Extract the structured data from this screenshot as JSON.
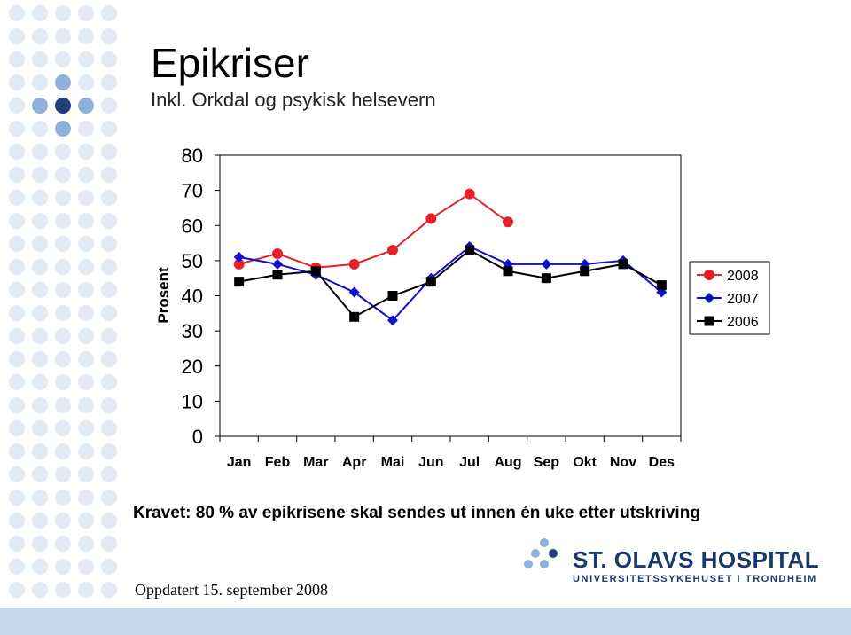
{
  "slide": {
    "title": "Epikriser",
    "subtitle": "Inkl. Orkdal og psykisk helsevern",
    "note": "Kravet: 80 % av epikrisene skal sendes ut innen én uke etter utskriving",
    "updated": "Oppdatert  15. september 2008",
    "logo_name": "ST. OLAVS HOSPITAL",
    "logo_sub": "UNIVERSITETSSYKEHUSET I TRONDHEIM"
  },
  "chart_data": {
    "type": "line",
    "y_label": "Prosent",
    "categories": [
      "Jan",
      "Feb",
      "Mar",
      "Apr",
      "Mai",
      "Jun",
      "Jul",
      "Aug",
      "Sep",
      "Okt",
      "Nov",
      "Des"
    ],
    "series": [
      {
        "name": "2008",
        "color": "#e8202a",
        "marker": "circle",
        "values": [
          49,
          52,
          48,
          49,
          53,
          62,
          69,
          61,
          null,
          null,
          null,
          null
        ]
      },
      {
        "name": "2007",
        "color": "#1010d0",
        "marker": "diamond",
        "values": [
          51,
          49,
          46,
          41,
          33,
          45,
          54,
          49,
          49,
          49,
          50,
          41
        ]
      },
      {
        "name": "2006",
        "color": "#000000",
        "marker": "square",
        "values": [
          44,
          46,
          47,
          34,
          40,
          44,
          53,
          47,
          45,
          47,
          49,
          43
        ]
      }
    ],
    "ylim": [
      0,
      80
    ],
    "yticks": [
      0,
      10,
      20,
      30,
      40,
      50,
      60,
      70,
      80
    ],
    "grid": false,
    "legend": "right"
  }
}
